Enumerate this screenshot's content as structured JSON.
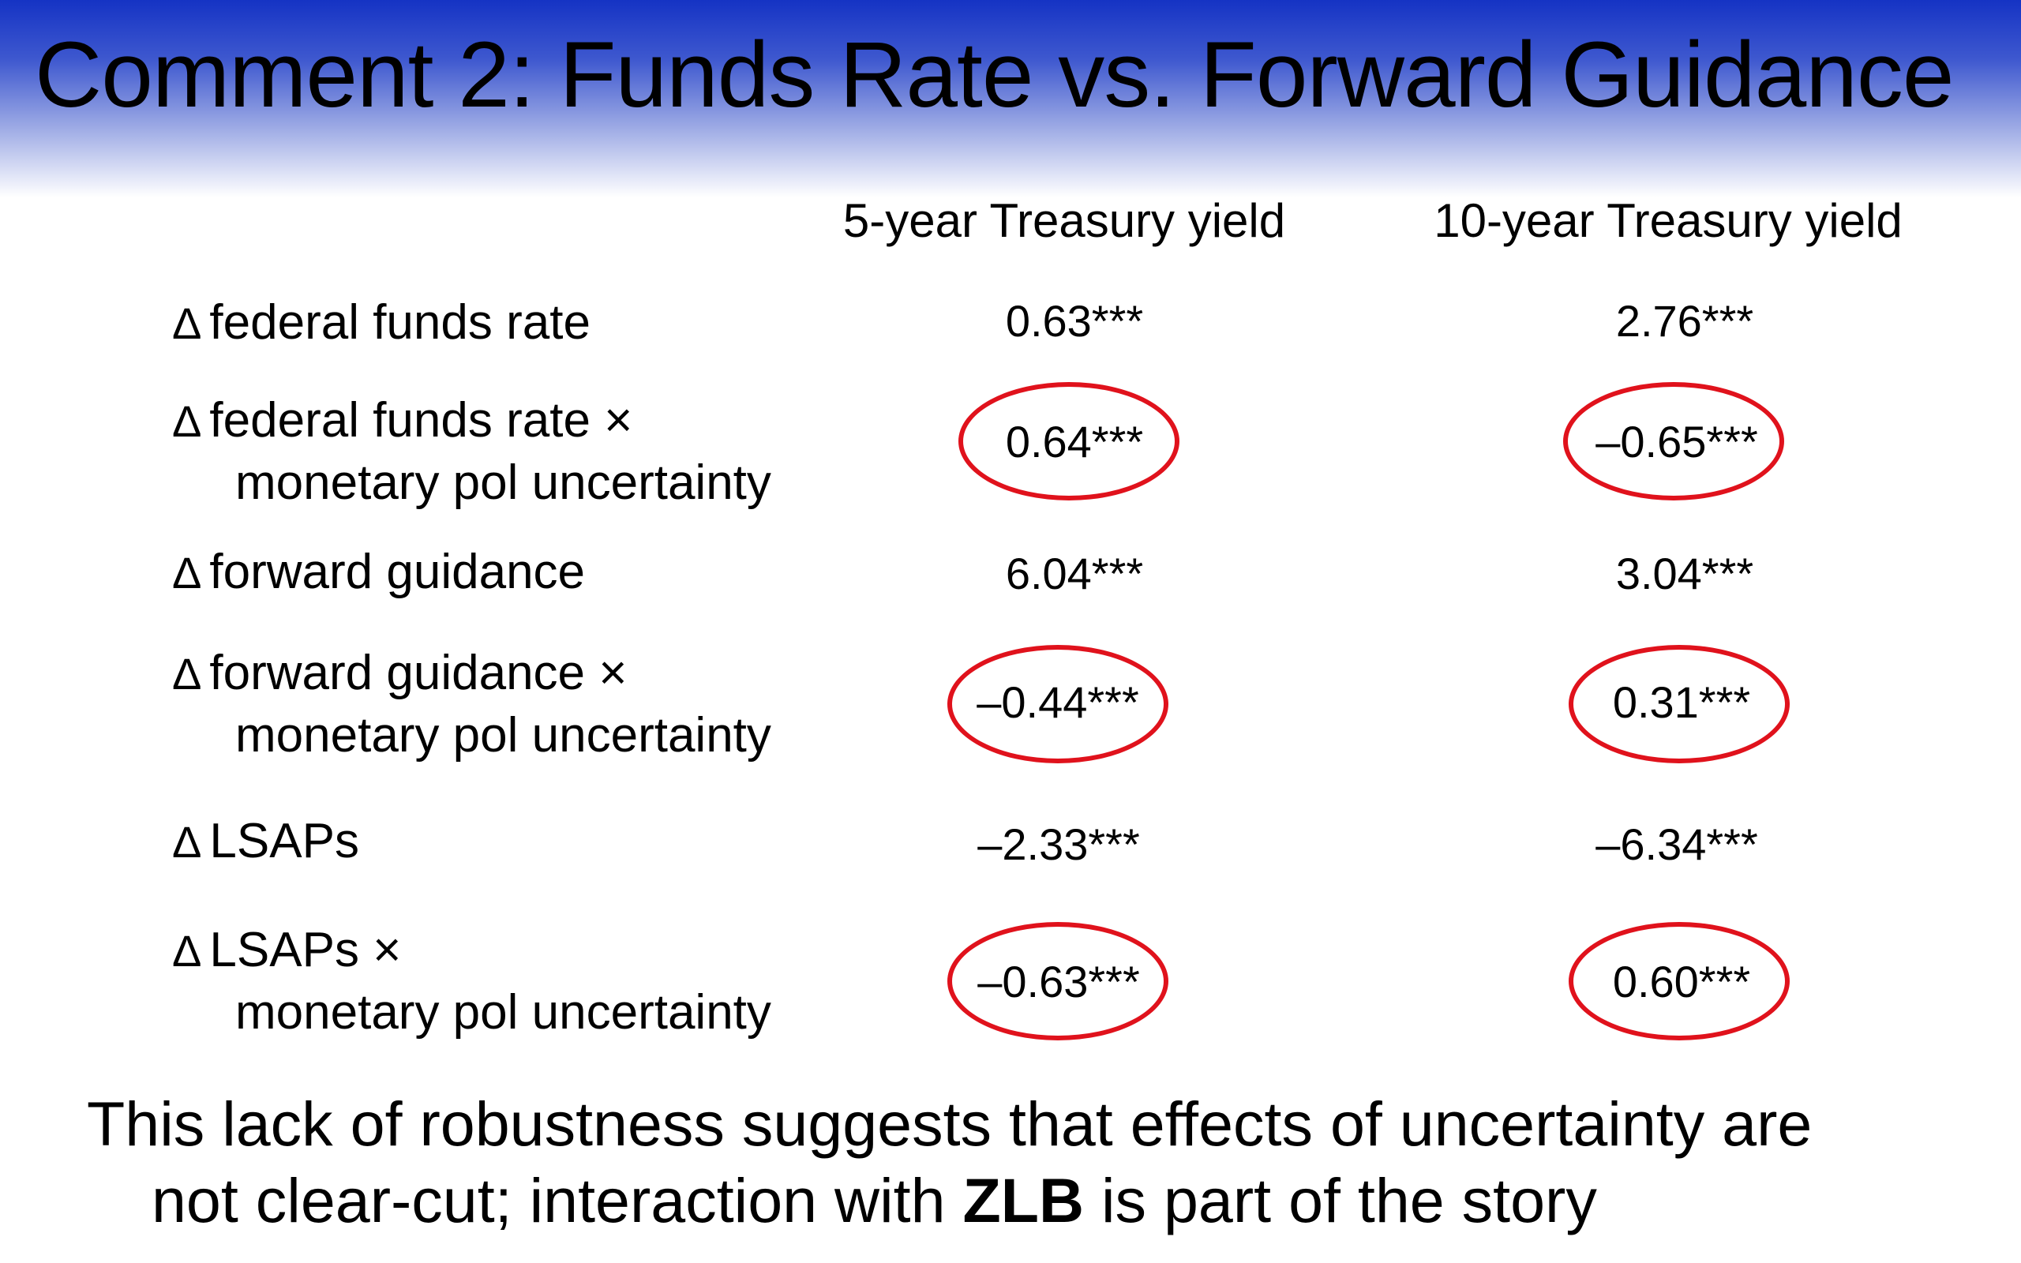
{
  "slide": {
    "title": "Comment 2:  Funds Rate vs. Forward Guidance",
    "columns": [
      "5-year Treasury yield",
      "10-year Treasury yield"
    ],
    "delta_symbol": "Δ",
    "rows": [
      {
        "label": "federal funds rate",
        "label2": "",
        "v5": "0.63***",
        "v10": "2.76***"
      },
      {
        "label": "federal funds rate ×",
        "label2": "monetary pol uncertainty",
        "v5": "0.64***",
        "v10": "–0.65***"
      },
      {
        "label": "forward guidance",
        "label2": "",
        "v5": "6.04***",
        "v10": "3.04***"
      },
      {
        "label": "forward guidance ×",
        "label2": "monetary pol uncertainty",
        "v5": "–0.44***",
        "v10": "0.31***"
      },
      {
        "label": "LSAPs",
        "label2": "",
        "v5": "–2.33***",
        "v10": "–6.34***"
      },
      {
        "label": "LSAPs ×",
        "label2": "monetary pol uncertainty",
        "v5": "–0.63***",
        "v10": "0.60***"
      }
    ],
    "footer": {
      "line1": "This lack of robustness suggests that effects of uncertainty are",
      "line2_pre": "not clear-cut; interaction with ",
      "line2_bold": "ZLB",
      "line2_post": " is part of the story"
    },
    "highlight_color": "#e0121c",
    "title_band_color": "#1533c4"
  }
}
